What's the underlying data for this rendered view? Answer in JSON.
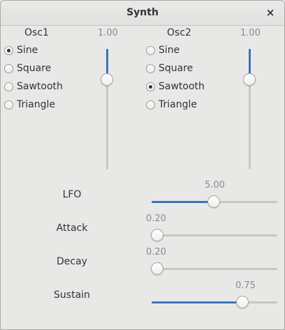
{
  "window": {
    "title": "Synth",
    "close_glyph": "×"
  },
  "osc1": {
    "title": "Osc1",
    "options": [
      "Sine",
      "Square",
      "Sawtooth",
      "Triangle"
    ],
    "selected": "Sine",
    "level": {
      "value_text": "1.00",
      "value": 1.0
    }
  },
  "osc2": {
    "title": "Osc2",
    "options": [
      "Sine",
      "Square",
      "Sawtooth",
      "Triangle"
    ],
    "selected": "Sawtooth",
    "level": {
      "value_text": "1.00",
      "value": 1.0
    }
  },
  "controls": {
    "lfo": {
      "label": "LFO",
      "value_text": "5.00",
      "value": 5.0,
      "min": 0,
      "max": 10
    },
    "attack": {
      "label": "Attack",
      "value_text": "0.20",
      "value": 0.2,
      "min": 0.2,
      "max": 2
    },
    "decay": {
      "label": "Decay",
      "value_text": "0.20",
      "value": 0.2,
      "min": 0.2,
      "max": 2
    },
    "sustain": {
      "label": "Sustain",
      "value_text": "0.75",
      "value": 0.75,
      "min": 0,
      "max": 1
    }
  },
  "colors": {
    "accent": "#3b73b9",
    "background": "#e8e8e7",
    "text": "#2e3436",
    "value_text": "#8a8c8a"
  }
}
